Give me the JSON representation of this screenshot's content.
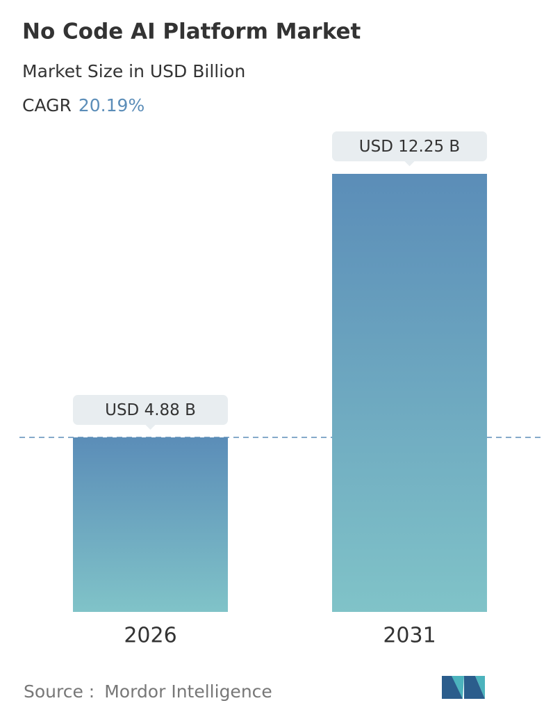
{
  "chart_data": {
    "type": "bar",
    "title": "No Code AI Platform Market",
    "subtitle": "Market Size in USD Billion",
    "cagr_label": "CAGR",
    "cagr_value": "20.19%",
    "categories": [
      "2026",
      "2031"
    ],
    "values": [
      4.88,
      12.25
    ],
    "value_labels": [
      "USD 4.88 B",
      "USD 12.25 B"
    ],
    "color_top": "#5b8db8",
    "color_bottom": "#80c3c8",
    "source_label": "Source :",
    "source": "Mordor Intelligence"
  }
}
